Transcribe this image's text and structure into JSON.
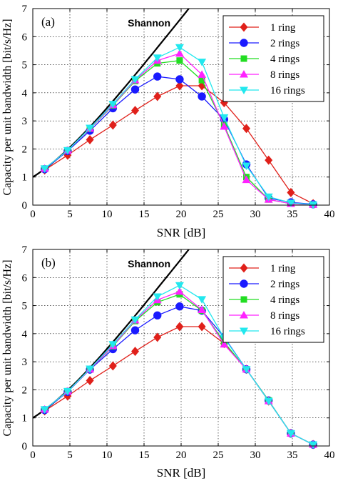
{
  "chart_data": [
    {
      "type": "line",
      "panel_label": "(a)",
      "xlabel": "SNR [dB]",
      "ylabel": "Capacity per unit bandwidth [bit/s/Hz]",
      "xlim": [
        0,
        40
      ],
      "ylim": [
        0,
        7
      ],
      "xticks": [
        0,
        5,
        10,
        15,
        20,
        25,
        30,
        35,
        40
      ],
      "yticks": [
        0,
        1,
        2,
        3,
        4,
        5,
        6,
        7
      ],
      "grid": true,
      "legend": "top-right",
      "shannon": {
        "name": "Shannon",
        "x": [
          0,
          40
        ]
      },
      "x": [
        1.6,
        4.7,
        7.7,
        10.8,
        13.8,
        16.8,
        19.8,
        22.8,
        25.8,
        28.8,
        31.8,
        34.8,
        37.8
      ],
      "series": [
        {
          "name": "1 ring",
          "color": "#e0201a",
          "marker": "diamond",
          "values": [
            1.25,
            1.78,
            2.33,
            2.85,
            3.37,
            3.87,
            4.25,
            4.25,
            3.65,
            2.73,
            1.6,
            0.45,
            0.05
          ]
        },
        {
          "name": "2 rings",
          "color": "#1a1aff",
          "marker": "circle",
          "values": [
            1.28,
            1.93,
            2.65,
            3.45,
            4.12,
            4.58,
            4.48,
            3.87,
            3.05,
            1.45,
            0.25,
            0.1,
            0.03
          ]
        },
        {
          "name": "4 rings",
          "color": "#22dd22",
          "marker": "square",
          "values": [
            1.3,
            1.95,
            2.72,
            3.55,
            4.42,
            5.05,
            5.15,
            4.45,
            2.85,
            1.0,
            0.2,
            0.05,
            0.02
          ]
        },
        {
          "name": "8 rings",
          "color": "#ff22ff",
          "marker": "triangle",
          "values": [
            1.3,
            1.95,
            2.73,
            3.57,
            4.45,
            5.15,
            5.4,
            4.65,
            2.8,
            0.9,
            0.2,
            0.05,
            0.02
          ]
        },
        {
          "name": "16 rings",
          "color": "#22e8ee",
          "marker": "triangle-down",
          "values": [
            1.3,
            1.95,
            2.75,
            3.6,
            4.48,
            5.25,
            5.62,
            5.1,
            3.12,
            1.4,
            0.3,
            0.08,
            0.02
          ]
        }
      ]
    },
    {
      "type": "line",
      "panel_label": "(b)",
      "xlabel": "SNR [dB]",
      "ylabel": "Capacity per unit bandwidth [bit/s/Hz]",
      "xlim": [
        0,
        40
      ],
      "ylim": [
        0,
        7
      ],
      "xticks": [
        0,
        5,
        10,
        15,
        20,
        25,
        30,
        35,
        40
      ],
      "yticks": [
        0,
        1,
        2,
        3,
        4,
        5,
        6,
        7
      ],
      "grid": true,
      "legend": "top-right",
      "shannon": {
        "name": "Shannon",
        "x": [
          0,
          40
        ]
      },
      "x": [
        1.6,
        4.7,
        7.7,
        10.8,
        13.8,
        16.8,
        19.8,
        22.8,
        25.8,
        28.8,
        31.8,
        34.8,
        37.8
      ],
      "series": [
        {
          "name": "1 ring",
          "color": "#e0201a",
          "marker": "diamond",
          "values": [
            1.25,
            1.78,
            2.33,
            2.85,
            3.37,
            3.87,
            4.25,
            4.25,
            3.65,
            2.73,
            1.6,
            0.45,
            0.05
          ]
        },
        {
          "name": "2 rings",
          "color": "#1a1aff",
          "marker": "circle",
          "values": [
            1.28,
            1.93,
            2.72,
            3.45,
            4.12,
            4.65,
            4.97,
            4.82,
            3.88,
            2.73,
            1.62,
            0.45,
            0.05
          ]
        },
        {
          "name": "4 rings",
          "color": "#22dd22",
          "marker": "square",
          "values": [
            1.3,
            1.95,
            2.73,
            3.55,
            4.45,
            5.12,
            5.4,
            4.82,
            3.7,
            2.73,
            1.62,
            0.45,
            0.05
          ]
        },
        {
          "name": "8 rings",
          "color": "#ff22ff",
          "marker": "triangle",
          "values": [
            1.3,
            1.95,
            2.73,
            3.57,
            4.48,
            5.2,
            5.5,
            4.85,
            3.62,
            2.73,
            1.6,
            0.45,
            0.05
          ]
        },
        {
          "name": "16 rings",
          "color": "#22e8ee",
          "marker": "triangle-down",
          "values": [
            1.3,
            1.95,
            2.75,
            3.62,
            4.5,
            5.32,
            5.72,
            5.22,
            3.85,
            2.73,
            1.6,
            0.45,
            0.05
          ]
        }
      ]
    }
  ]
}
